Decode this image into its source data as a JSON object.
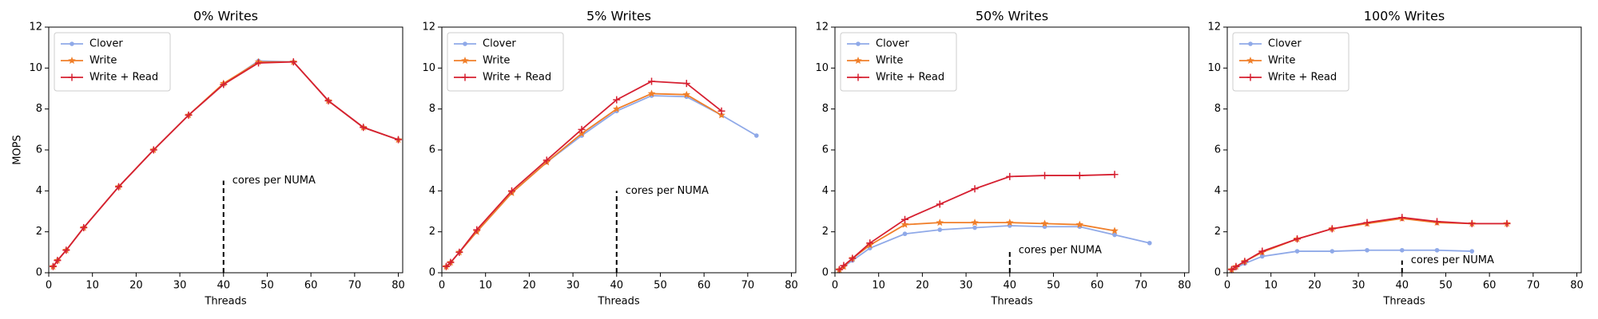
{
  "chart_data": [
    {
      "type": "line",
      "title": "0% Writes",
      "xlabel": "Threads",
      "ylabel": "MOPS",
      "x": [
        1,
        2,
        4,
        8,
        16,
        24,
        32,
        40,
        48,
        56,
        64,
        72,
        80
      ],
      "series": [
        {
          "name": "Clover",
          "color": "#8fa9e8",
          "marker": "dot",
          "values": [
            0.3,
            0.6,
            1.1,
            2.2,
            4.2,
            6.0,
            7.7,
            9.2,
            10.35,
            10.3,
            8.4,
            7.1,
            6.5
          ]
        },
        {
          "name": "Write",
          "color": "#f07f2a",
          "marker": "star",
          "values": [
            0.3,
            0.6,
            1.1,
            2.2,
            4.2,
            6.0,
            7.7,
            9.25,
            10.3,
            10.3,
            8.4,
            7.1,
            6.5
          ]
        },
        {
          "name": "Write + Read",
          "color": "#d62031",
          "marker": "plus",
          "values": [
            0.3,
            0.6,
            1.1,
            2.2,
            4.2,
            6.0,
            7.7,
            9.2,
            10.25,
            10.3,
            8.4,
            7.1,
            6.5
          ]
        }
      ],
      "annotation": {
        "text": "cores per NUMA",
        "x": 40,
        "y": 4.5
      },
      "xlim": [
        0,
        81
      ],
      "xticks": [
        0,
        10,
        20,
        30,
        40,
        50,
        60,
        70,
        80
      ],
      "ylim": [
        0,
        12
      ],
      "yticks": [
        0,
        2,
        4,
        6,
        8,
        10,
        12
      ],
      "legend": "upper-left"
    },
    {
      "type": "line",
      "title": "5% Writes",
      "xlabel": "Threads",
      "x": [
        1,
        2,
        4,
        8,
        16,
        24,
        32,
        40,
        48,
        56,
        64,
        72
      ],
      "series": [
        {
          "name": "Clover",
          "color": "#8fa9e8",
          "marker": "dot",
          "values": [
            0.3,
            0.5,
            1.0,
            2.0,
            3.9,
            5.4,
            6.7,
            7.9,
            8.65,
            8.6,
            7.7,
            6.7
          ]
        },
        {
          "name": "Write",
          "color": "#f07f2a",
          "marker": "star",
          "values": [
            0.3,
            0.5,
            1.0,
            2.0,
            3.9,
            5.4,
            6.8,
            8.0,
            8.75,
            8.7,
            7.7,
            null
          ]
        },
        {
          "name": "Write + Read",
          "color": "#d62031",
          "marker": "plus",
          "values": [
            0.3,
            0.5,
            1.0,
            2.1,
            4.0,
            5.5,
            7.0,
            8.45,
            9.35,
            9.25,
            7.9,
            null
          ]
        }
      ],
      "annotation": {
        "text": "cores per NUMA",
        "x": 40,
        "y": 4.0
      },
      "xlim": [
        0,
        81
      ],
      "xticks": [
        0,
        10,
        20,
        30,
        40,
        50,
        60,
        70,
        80
      ],
      "ylim": [
        0,
        12
      ],
      "yticks": [
        0,
        2,
        4,
        6,
        8,
        10,
        12
      ],
      "legend": "upper-left"
    },
    {
      "type": "line",
      "title": "50% Writes",
      "xlabel": "Threads",
      "x": [
        1,
        2,
        4,
        8,
        16,
        24,
        32,
        40,
        48,
        56,
        64,
        72
      ],
      "series": [
        {
          "name": "Clover",
          "color": "#8fa9e8",
          "marker": "dot",
          "values": [
            0.15,
            0.3,
            0.6,
            1.2,
            1.9,
            2.1,
            2.2,
            2.3,
            2.25,
            2.25,
            1.85,
            1.45
          ]
        },
        {
          "name": "Write",
          "color": "#f07f2a",
          "marker": "star",
          "values": [
            0.15,
            0.3,
            0.7,
            1.35,
            2.35,
            2.45,
            2.45,
            2.45,
            2.4,
            2.35,
            2.05,
            null
          ]
        },
        {
          "name": "Write + Read",
          "color": "#d62031",
          "marker": "plus",
          "values": [
            0.15,
            0.35,
            0.7,
            1.45,
            2.6,
            3.35,
            4.1,
            4.7,
            4.75,
            4.75,
            4.8,
            null
          ]
        }
      ],
      "annotation": {
        "text": "cores per NUMA",
        "x": 40,
        "y": 1.1
      },
      "xlim": [
        0,
        81
      ],
      "xticks": [
        0,
        10,
        20,
        30,
        40,
        50,
        60,
        70,
        80
      ],
      "ylim": [
        0,
        12
      ],
      "yticks": [
        0,
        2,
        4,
        6,
        8,
        10,
        12
      ],
      "legend": "upper-left"
    },
    {
      "type": "line",
      "title": "100% Writes",
      "xlabel": "Threads",
      "x": [
        1,
        2,
        4,
        8,
        16,
        24,
        32,
        40,
        48,
        56,
        64
      ],
      "series": [
        {
          "name": "Clover",
          "color": "#8fa9e8",
          "marker": "dot",
          "values": [
            0.15,
            0.25,
            0.45,
            0.8,
            1.05,
            1.05,
            1.1,
            1.1,
            1.1,
            1.05,
            null
          ]
        },
        {
          "name": "Write",
          "color": "#f07f2a",
          "marker": "star",
          "values": [
            0.15,
            0.3,
            0.55,
            1.0,
            1.65,
            2.15,
            2.4,
            2.65,
            2.45,
            2.4,
            2.4
          ]
        },
        {
          "name": "Write + Read",
          "color": "#d62031",
          "marker": "plus",
          "values": [
            0.15,
            0.3,
            0.55,
            1.05,
            1.65,
            2.15,
            2.45,
            2.7,
            2.5,
            2.4,
            2.4
          ]
        }
      ],
      "annotation": {
        "text": "cores per NUMA",
        "x": 40,
        "y": 0.6
      },
      "xlim": [
        0,
        81
      ],
      "xticks": [
        0,
        10,
        20,
        30,
        40,
        50,
        60,
        70,
        80
      ],
      "ylim": [
        0,
        12
      ],
      "yticks": [
        0,
        2,
        4,
        6,
        8,
        10,
        12
      ],
      "legend": "upper-left"
    }
  ]
}
